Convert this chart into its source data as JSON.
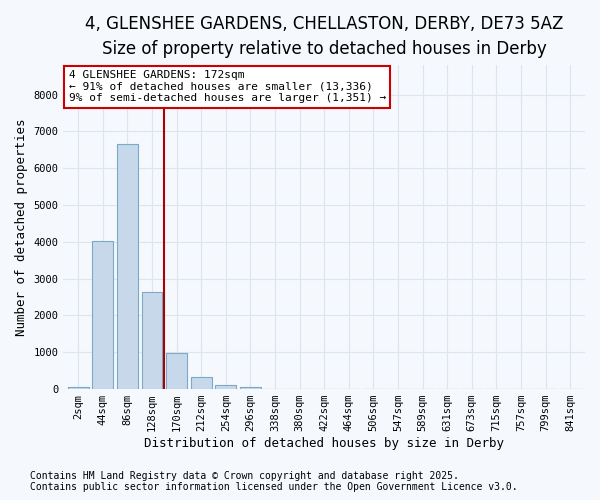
{
  "title_line1": "4, GLENSHEE GARDENS, CHELLASTON, DERBY, DE73 5AZ",
  "title_line2": "Size of property relative to detached houses in Derby",
  "xlabel": "Distribution of detached houses by size in Derby",
  "ylabel": "Number of detached properties",
  "bar_color": "#c8d8eb",
  "bar_edge_color": "#7aaac8",
  "categories": [
    "2sqm",
    "44sqm",
    "86sqm",
    "128sqm",
    "170sqm",
    "212sqm",
    "254sqm",
    "296sqm",
    "338sqm",
    "380sqm",
    "422sqm",
    "464sqm",
    "506sqm",
    "547sqm",
    "589sqm",
    "631sqm",
    "673sqm",
    "715sqm",
    "757sqm",
    "799sqm",
    "841sqm"
  ],
  "values": [
    50,
    4020,
    6650,
    2650,
    980,
    330,
    120,
    50,
    0,
    0,
    0,
    0,
    0,
    0,
    0,
    0,
    0,
    0,
    0,
    0,
    0
  ],
  "ylim": [
    0,
    8800
  ],
  "yticks": [
    0,
    1000,
    2000,
    3000,
    4000,
    5000,
    6000,
    7000,
    8000
  ],
  "vline_x_index": 3.5,
  "annotation_text": "4 GLENSHEE GARDENS: 172sqm\n← 91% of detached houses are smaller (13,336)\n9% of semi-detached houses are larger (1,351) →",
  "annotation_box_facecolor": "#ffffff",
  "annotation_box_edgecolor": "#cc0000",
  "vline_color": "#aa0000",
  "background_color": "#f5f8fc",
  "plot_background_color": "#f5f8fc",
  "footer_line1": "Contains HM Land Registry data © Crown copyright and database right 2025.",
  "footer_line2": "Contains public sector information licensed under the Open Government Licence v3.0.",
  "grid_color": "#dde4ee",
  "title_fontsize": 12,
  "subtitle_fontsize": 10,
  "axis_label_fontsize": 9,
  "tick_fontsize": 7.5,
  "annotation_fontsize": 8,
  "footer_fontsize": 7
}
